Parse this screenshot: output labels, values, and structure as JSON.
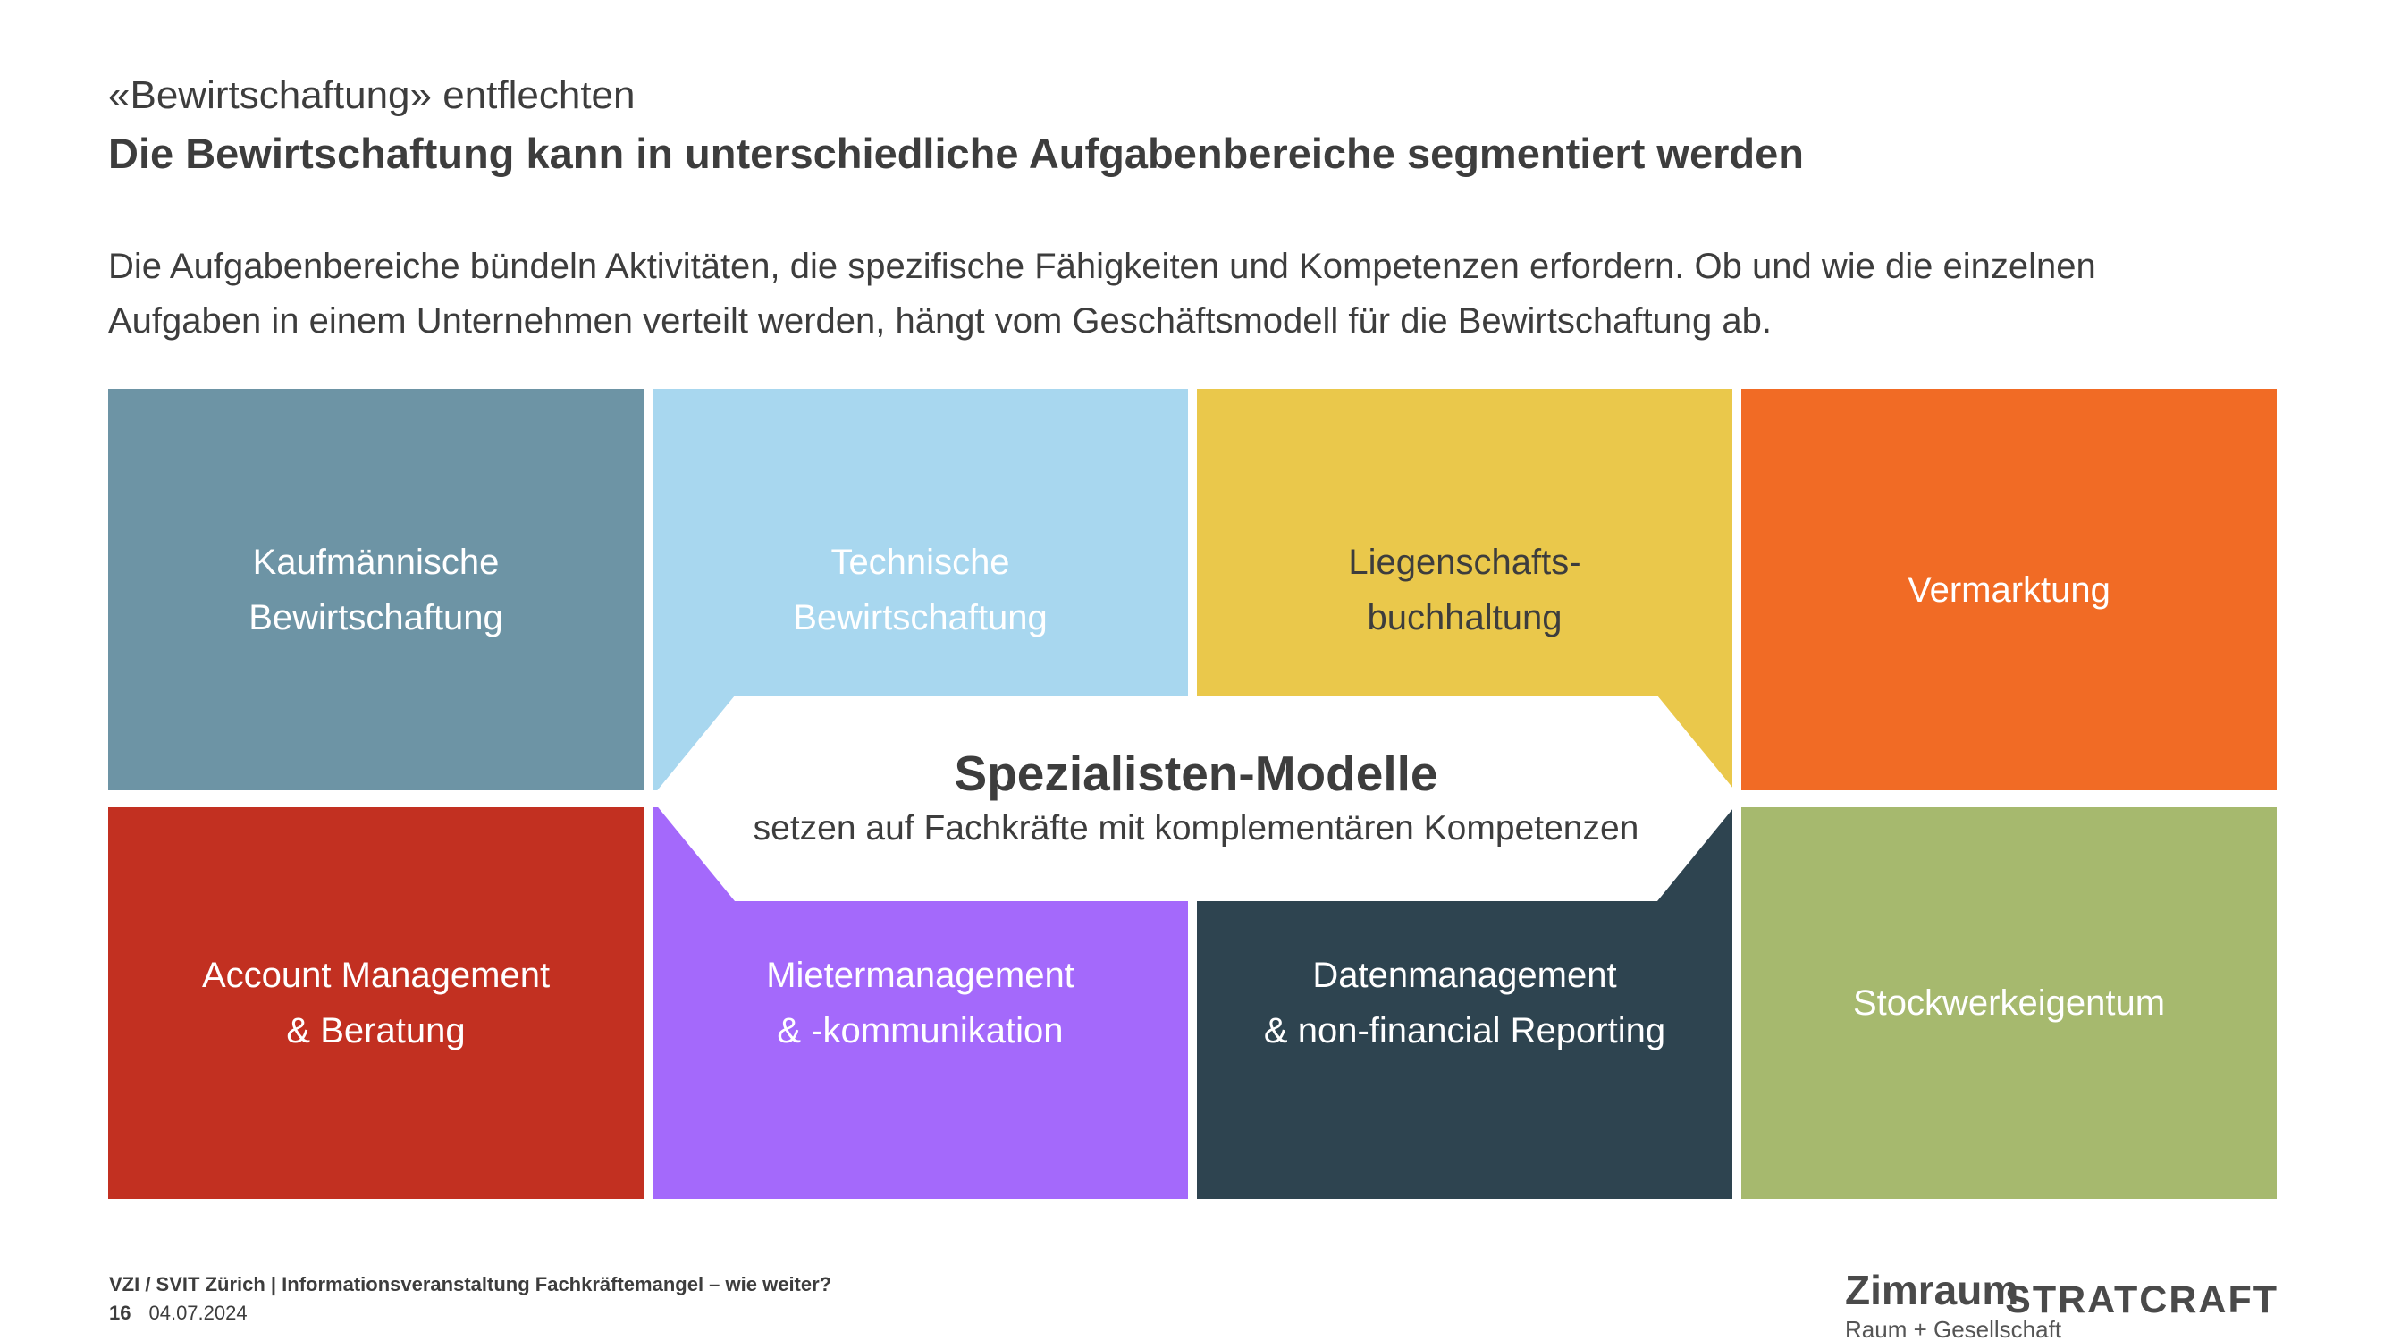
{
  "header": {
    "kicker": "«Bewirtschaftung» entflechten",
    "title": "Die Bewirtschaftung kann in unterschiedliche Aufgabenbereiche segmentiert werden",
    "intro_line1": "Die Aufgabenbereiche bündeln Aktivitäten, die spezifische Fähigkeiten und Kompetenzen erfordern. Ob und wie die einzelnen",
    "intro_line2": "Aufgaben in einem Unternehmen verteilt werden, hängt vom Geschäftsmodell für die Bewirtschaftung ab."
  },
  "boxes": [
    {
      "line1": "Kaufmännische",
      "line2": "Bewirtschaftung",
      "bg": "#6d94a5",
      "text_color": "#ffffff"
    },
    {
      "line1": "Technische",
      "line2": "Bewirtschaftung",
      "bg": "#a8d7ef",
      "text_color": "#ffffff"
    },
    {
      "line1": "Liegenschafts-",
      "line2": "buchhaltung",
      "bg": "#eac84b",
      "text_color": "#3d3d3d"
    },
    {
      "line1": "Vermarktung",
      "line2": "",
      "bg": "#f16b25",
      "text_color": "#ffffff"
    },
    {
      "line1": "Account Management",
      "line2": "& Beratung",
      "bg": "#c23021",
      "text_color": "#ffffff"
    },
    {
      "line1": "Mietermanagement",
      "line2": "& -kommunikation",
      "bg": "#a469fb",
      "text_color": "#ffffff"
    },
    {
      "line1": "Datenmanagement",
      "line2": "& non-financial Reporting",
      "bg": "#2e4450",
      "text_color": "#ffffff"
    },
    {
      "line1": "Stockwerkeigentum",
      "line2": "",
      "bg": "#a6b96e",
      "text_color": "#ffffff"
    }
  ],
  "banner": {
    "title": "Spezialisten-Modelle",
    "subtitle": "setzen auf Fachkräfte mit komplementären Kompetenzen",
    "bg": "#ffffff"
  },
  "footer": {
    "event": "VZI / SVIT Zürich | Informationsveranstaltung Fachkräftemangel – wie weiter?",
    "page": "16",
    "date": "04.07.2024"
  },
  "logos": {
    "zimraum": "Zimraum",
    "zimraum_sub": "Raum + Gesellschaft",
    "stratcraft": "STRATCRAFT"
  }
}
